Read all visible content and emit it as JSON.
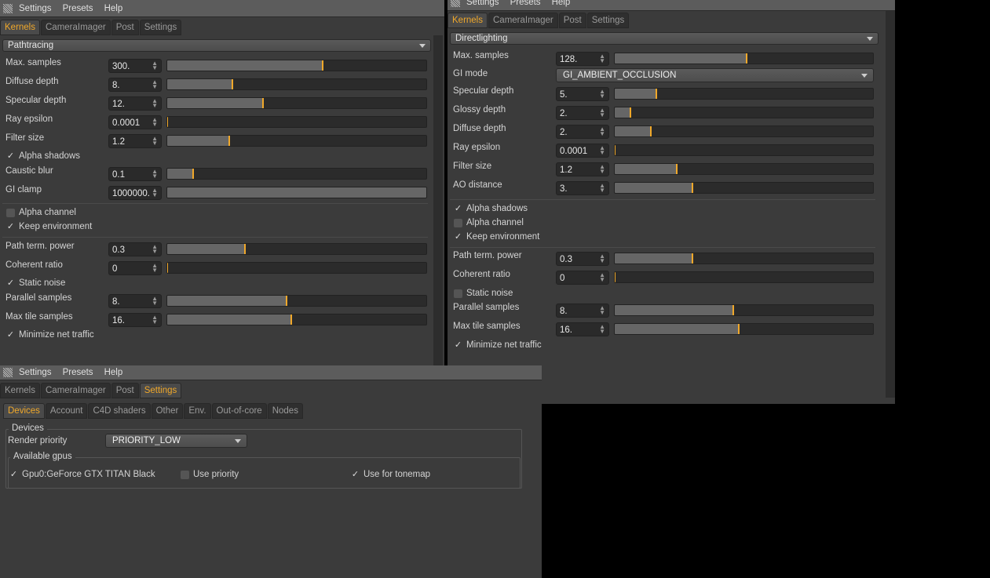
{
  "colors": {
    "accent": "#f0a82a",
    "window_bg": "#3b3b3b",
    "menubar": "#5c5c5c"
  },
  "menu": [
    "Settings",
    "Presets",
    "Help"
  ],
  "main_tabs": [
    "Kernels",
    "CameraImager",
    "Post",
    "Settings"
  ],
  "left": {
    "active_tab": "Kernels",
    "kernel": "Pathtracing",
    "rows": [
      {
        "type": "slider",
        "label": "Max. samples",
        "value": "300.",
        "fill": 0.6
      },
      {
        "type": "slider",
        "label": "Diffuse depth",
        "value": "8.",
        "fill": 0.25
      },
      {
        "type": "slider",
        "label": "Specular depth",
        "value": "12.",
        "fill": 0.37
      },
      {
        "type": "slider",
        "label": "Ray epsilon",
        "value": "0.0001",
        "fill": 0
      },
      {
        "type": "slider",
        "label": "Filter size",
        "value": "1.2",
        "fill": 0.24
      },
      {
        "type": "check",
        "label": "Alpha shadows",
        "checked": true
      },
      {
        "type": "slider",
        "label": "Caustic blur",
        "value": "0.1",
        "fill": 0.1
      },
      {
        "type": "slider",
        "label": "GI clamp",
        "value": "1000000.",
        "fill": 1
      },
      {
        "type": "divider"
      },
      {
        "type": "check",
        "label": "Alpha channel",
        "checked": false
      },
      {
        "type": "check",
        "label": "Keep environment",
        "checked": true
      },
      {
        "type": "divider"
      },
      {
        "type": "slider",
        "label": "Path term. power",
        "value": "0.3",
        "fill": 0.3
      },
      {
        "type": "slider",
        "label": "Coherent ratio",
        "value": "0",
        "fill": 0
      },
      {
        "type": "check",
        "label": "Static noise",
        "checked": true
      },
      {
        "type": "slider",
        "label": "Parallel samples",
        "value": "8.",
        "fill": 0.46
      },
      {
        "type": "slider",
        "label": "Max tile samples",
        "value": "16.",
        "fill": 0.48
      },
      {
        "type": "check",
        "label": "Minimize net traffic",
        "checked": true
      }
    ]
  },
  "right": {
    "active_tab": "Kernels",
    "kernel": "Directlighting",
    "rows": [
      {
        "type": "slider",
        "label": "Max. samples",
        "value": "128.",
        "fill": 0.51
      },
      {
        "type": "select",
        "label": "GI mode",
        "value": "GI_AMBIENT_OCCLUSION"
      },
      {
        "type": "slider",
        "label": "Specular depth",
        "value": "5.",
        "fill": 0.16
      },
      {
        "type": "slider",
        "label": "Glossy depth",
        "value": "2.",
        "fill": 0.06
      },
      {
        "type": "slider",
        "label": "Diffuse depth",
        "value": "2.",
        "fill": 0.14
      },
      {
        "type": "slider",
        "label": "Ray epsilon",
        "value": "0.0001",
        "fill": 0
      },
      {
        "type": "slider",
        "label": "Filter size",
        "value": "1.2",
        "fill": 0.24
      },
      {
        "type": "slider",
        "label": "AO distance",
        "value": "3.",
        "fill": 0.3
      },
      {
        "type": "divider"
      },
      {
        "type": "check",
        "label": "Alpha shadows",
        "checked": true
      },
      {
        "type": "check",
        "label": "Alpha channel",
        "checked": false
      },
      {
        "type": "check",
        "label": "Keep environment",
        "checked": true
      },
      {
        "type": "divider"
      },
      {
        "type": "slider",
        "label": "Path term. power",
        "value": "0.3",
        "fill": 0.3
      },
      {
        "type": "slider",
        "label": "Coherent ratio",
        "value": "0",
        "fill": 0
      },
      {
        "type": "check",
        "label": "Static noise",
        "checked": false
      },
      {
        "type": "slider",
        "label": "Parallel samples",
        "value": "8.",
        "fill": 0.46
      },
      {
        "type": "slider",
        "label": "Max tile samples",
        "value": "16.",
        "fill": 0.48
      },
      {
        "type": "check",
        "label": "Minimize net traffic",
        "checked": true
      }
    ]
  },
  "bottom": {
    "active_tab": "Settings",
    "sub_tabs": [
      "Devices",
      "Account",
      "C4D shaders",
      "Other",
      "Env.",
      "Out-of-core",
      "Nodes"
    ],
    "active_sub_tab": "Devices",
    "devices_group": "Devices",
    "render_priority_label": "Render priority",
    "render_priority_value": "PRIORITY_LOW",
    "gpus_group": "Available gpus",
    "gpu": {
      "name": "Gpu0:GeForce GTX TITAN Black",
      "enabled": true
    },
    "use_priority": {
      "label": "Use priority",
      "checked": false
    },
    "use_for_tonemap": {
      "label": "Use for tonemap",
      "checked": true
    }
  }
}
